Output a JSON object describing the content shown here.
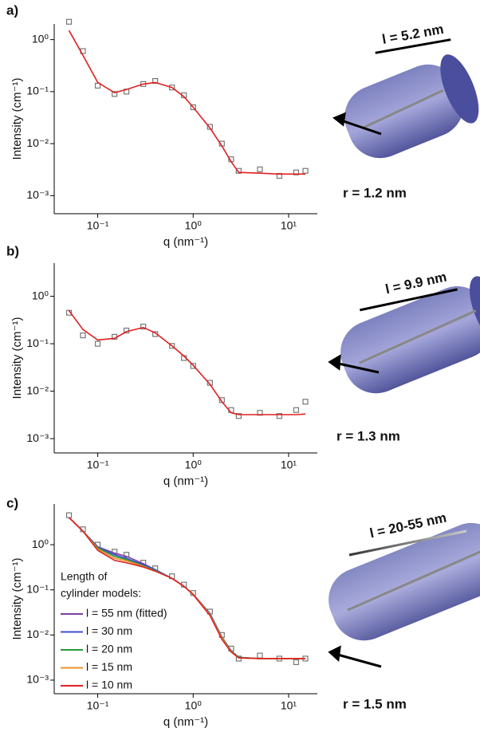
{
  "chart_data": [
    {
      "type": "line",
      "panel_label": "a)",
      "xlabel": "q (nm⁻¹)",
      "ylabel": "Intensity (cm⁻¹)",
      "log_x": true,
      "log_y": true,
      "xlim": [
        0.035,
        20
      ],
      "ylim": [
        0.00045,
        2
      ],
      "xticks": [
        {
          "value": 0.1,
          "label": "10⁻¹"
        },
        {
          "value": 1,
          "label": "10⁰"
        },
        {
          "value": 10,
          "label": "10¹"
        }
      ],
      "yticks": [
        {
          "value": 1,
          "label": "10⁰"
        },
        {
          "value": 0.1,
          "label": "10⁻¹"
        },
        {
          "value": 0.01,
          "label": "10⁻²"
        },
        {
          "value": 0.001,
          "label": "10⁻³"
        }
      ],
      "x": [
        0.05,
        0.07,
        0.1,
        0.15,
        0.2,
        0.3,
        0.4,
        0.6,
        0.8,
        1,
        1.5,
        2,
        2.5,
        3,
        5,
        8,
        12,
        15
      ],
      "data_color": "#777777",
      "data_values": [
        2.2,
        0.6,
        0.13,
        0.09,
        0.1,
        0.14,
        0.16,
        0.12,
        0.085,
        0.05,
        0.021,
        0.01,
        0.005,
        0.003,
        0.0032,
        0.0024,
        0.0028,
        0.003
      ],
      "series": [
        {
          "color": "#e02020",
          "values": [
            1.5,
            0.5,
            0.15,
            0.095,
            0.11,
            0.14,
            0.15,
            0.12,
            0.08,
            0.05,
            0.02,
            0.009,
            0.0045,
            0.0028,
            0.0027,
            0.0026,
            0.0026,
            0.0026
          ]
        }
      ],
      "length_label": "l = 5.2 nm",
      "radius_label": "r = 1.2 nm"
    },
    {
      "type": "line",
      "panel_label": "b)",
      "xlabel": "q (nm⁻¹)",
      "ylabel": "Intensity (cm⁻¹)",
      "log_x": true,
      "log_y": true,
      "xlim": [
        0.035,
        20
      ],
      "ylim": [
        0.0005,
        5
      ],
      "xticks": [
        {
          "value": 0.1,
          "label": "10⁻¹"
        },
        {
          "value": 1,
          "label": "10⁰"
        },
        {
          "value": 10,
          "label": "10¹"
        }
      ],
      "yticks": [
        {
          "value": 1,
          "label": "10⁰"
        },
        {
          "value": 0.1,
          "label": "10⁻¹"
        },
        {
          "value": 0.01,
          "label": "10⁻²"
        },
        {
          "value": 0.001,
          "label": "10⁻³"
        }
      ],
      "x": [
        0.05,
        0.07,
        0.1,
        0.15,
        0.2,
        0.3,
        0.4,
        0.6,
        0.8,
        1,
        1.5,
        2,
        2.5,
        3,
        5,
        8,
        12,
        15
      ],
      "data_color": "#777777",
      "data_values": [
        0.45,
        0.15,
        0.1,
        0.14,
        0.19,
        0.23,
        0.16,
        0.09,
        0.05,
        0.034,
        0.015,
        0.0065,
        0.004,
        0.003,
        0.0035,
        0.003,
        0.004,
        0.006
      ],
      "series": [
        {
          "color": "#e02020",
          "values": [
            0.5,
            0.2,
            0.12,
            0.13,
            0.18,
            0.22,
            0.17,
            0.09,
            0.055,
            0.035,
            0.014,
            0.006,
            0.0035,
            0.0032,
            0.0032,
            0.0032,
            0.0032,
            0.0033
          ]
        }
      ],
      "length_label": "l = 9.9 nm",
      "radius_label": "r = 1.3 nm"
    },
    {
      "type": "line",
      "panel_label": "c)",
      "xlabel": "q (nm⁻¹)",
      "ylabel": "Intensity (cm⁻¹)",
      "log_x": true,
      "log_y": true,
      "xlim": [
        0.035,
        20
      ],
      "ylim": [
        0.0005,
        8
      ],
      "xticks": [
        {
          "value": 0.1,
          "label": "10⁻¹"
        },
        {
          "value": 1,
          "label": "10⁰"
        },
        {
          "value": 10,
          "label": "10¹"
        }
      ],
      "yticks": [
        {
          "value": 1,
          "label": "10⁰"
        },
        {
          "value": 0.1,
          "label": "10⁻¹"
        },
        {
          "value": 0.01,
          "label": "10⁻²"
        },
        {
          "value": 0.001,
          "label": "10⁻³"
        }
      ],
      "x": [
        0.05,
        0.07,
        0.1,
        0.15,
        0.2,
        0.3,
        0.4,
        0.6,
        0.8,
        1,
        1.5,
        2,
        2.5,
        3,
        5,
        8,
        12,
        15
      ],
      "data_color": "#777777",
      "data_values": [
        4.5,
        2.2,
        1,
        0.7,
        0.6,
        0.4,
        0.3,
        0.2,
        0.13,
        0.085,
        0.033,
        0.01,
        0.005,
        0.003,
        0.0035,
        0.003,
        0.0025,
        0.003
      ],
      "legend_title": [
        "Length of",
        "cylinder models:"
      ],
      "series": [
        {
          "name": "l = 55 nm (fitted)",
          "color": "#7b3fa0",
          "values": [
            4,
            2,
            0.9,
            0.65,
            0.55,
            0.38,
            0.28,
            0.18,
            0.12,
            0.08,
            0.03,
            0.009,
            0.0045,
            0.0032,
            0.003,
            0.003,
            0.003,
            0.003
          ]
        },
        {
          "name": "l = 30 nm",
          "color": "#3f4fd0",
          "values": [
            4,
            2,
            0.88,
            0.6,
            0.5,
            0.36,
            0.28,
            0.18,
            0.12,
            0.08,
            0.03,
            0.009,
            0.0045,
            0.0032,
            0.003,
            0.003,
            0.003,
            0.003
          ]
        },
        {
          "name": "l = 20 nm",
          "color": "#2a9a3a",
          "values": [
            4,
            2,
            0.85,
            0.55,
            0.47,
            0.34,
            0.27,
            0.18,
            0.12,
            0.08,
            0.029,
            0.0088,
            0.0044,
            0.0032,
            0.003,
            0.003,
            0.003,
            0.003
          ]
        },
        {
          "name": "l = 15 nm",
          "color": "#f0902a",
          "values": [
            4,
            2,
            0.8,
            0.5,
            0.44,
            0.33,
            0.26,
            0.18,
            0.12,
            0.08,
            0.028,
            0.0085,
            0.0043,
            0.0031,
            0.003,
            0.003,
            0.003,
            0.003
          ]
        },
        {
          "name": "l = 10 nm",
          "color": "#e02020",
          "values": [
            4,
            2,
            0.75,
            0.45,
            0.4,
            0.32,
            0.26,
            0.18,
            0.12,
            0.078,
            0.027,
            0.008,
            0.0042,
            0.0031,
            0.003,
            0.003,
            0.003,
            0.003
          ]
        }
      ],
      "length_label": "l = 20-55 nm",
      "radius_label": "r = 1.5 nm"
    }
  ]
}
